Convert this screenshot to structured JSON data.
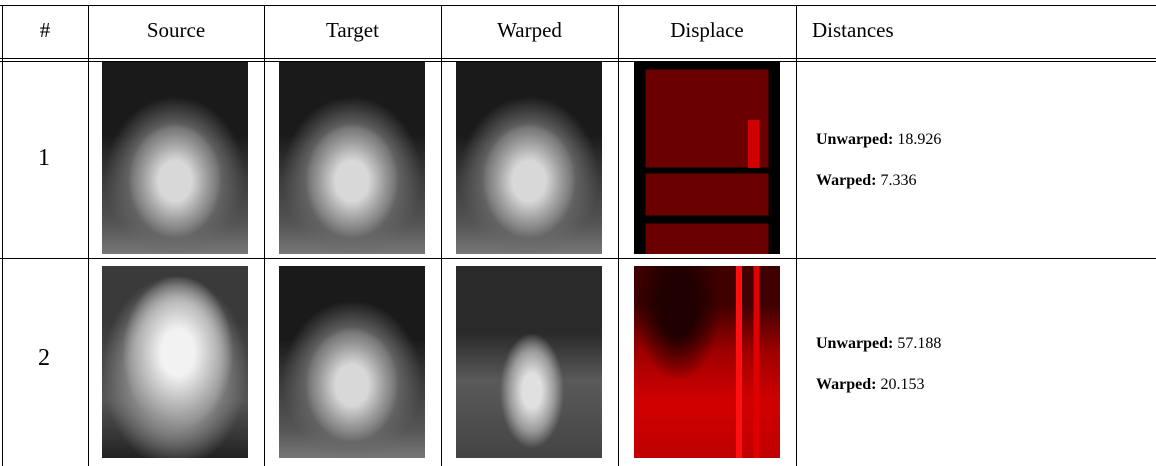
{
  "table": {
    "headers": [
      "#",
      "Source",
      "Target",
      "Warped",
      "Displace",
      "Distances"
    ],
    "rows": [
      {
        "index": "1",
        "unwarped_label": "Unwarped:",
        "unwarped": "18.926",
        "warped_label": "Warped:",
        "warped": "7.336"
      },
      {
        "index": "2",
        "unwarped_label": "Unwarped:",
        "unwarped": "57.188",
        "warped_label": "Warped:",
        "warped": "20.153"
      }
    ]
  }
}
